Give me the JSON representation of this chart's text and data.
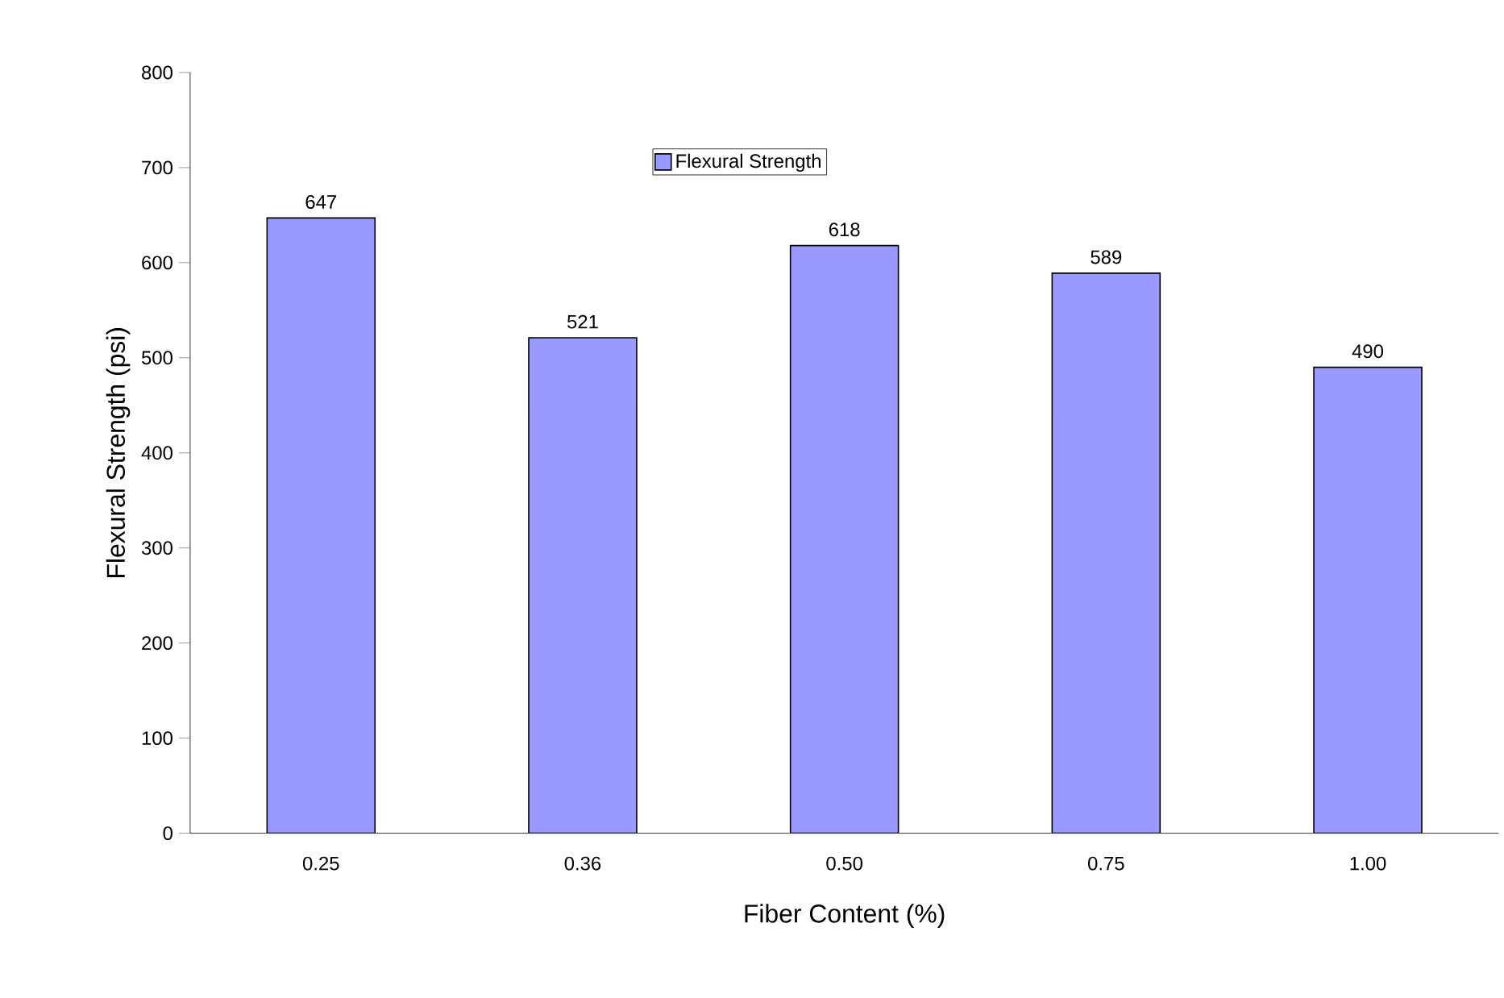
{
  "chart_data": {
    "type": "bar",
    "xlabel": "Fiber Content (%)",
    "ylabel": "Flexural Strength (psi)",
    "categories": [
      "0.25",
      "0.36",
      "0.50",
      "0.75",
      "1.00"
    ],
    "series": [
      {
        "name": "Flexural Strength",
        "color": "#9999ff",
        "values": [
          647,
          521,
          618,
          589,
          490
        ]
      }
    ],
    "ylim": [
      0,
      800
    ],
    "yticks": [
      0,
      100,
      200,
      300,
      400,
      500,
      600,
      700,
      800
    ],
    "data_labels": true,
    "legend": "top",
    "grid": false
  }
}
